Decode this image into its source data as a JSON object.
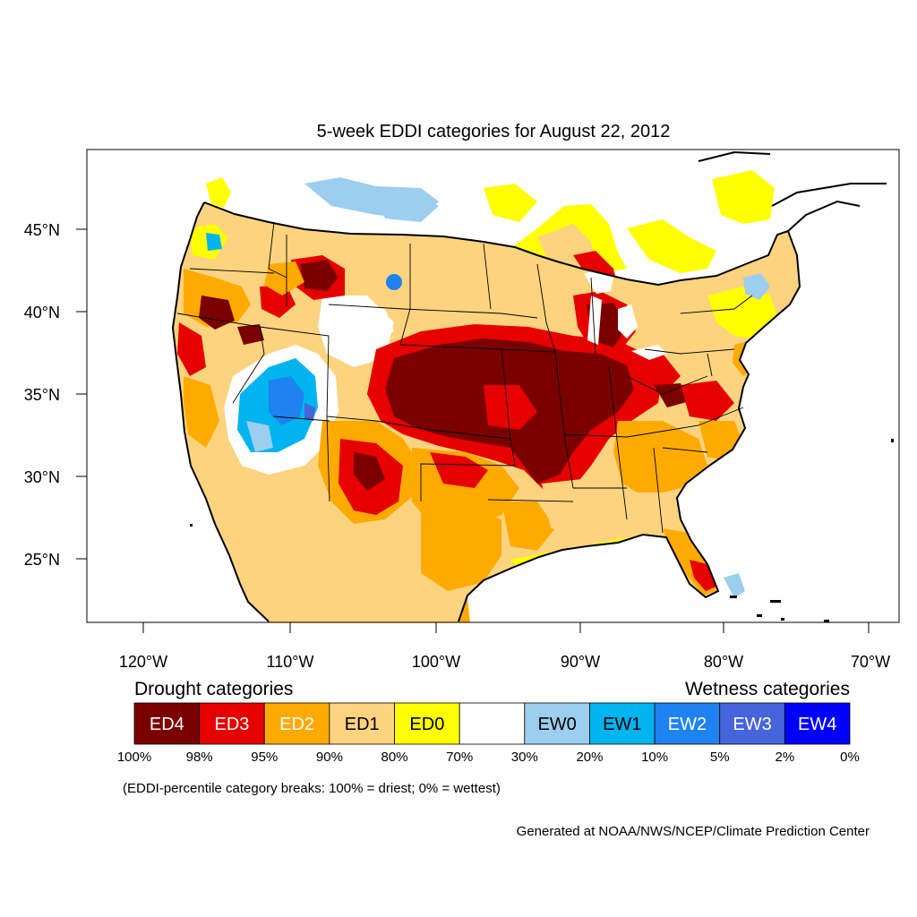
{
  "title": "5-week EDDI categories for August 22, 2012",
  "lat_labels": [
    "45°N",
    "40°N",
    "35°N",
    "30°N",
    "25°N"
  ],
  "lon_labels": [
    "120°W",
    "110°W",
    "100°W",
    "90°W",
    "80°W",
    "70°W"
  ],
  "legend": {
    "drought_heading": "Drought categories",
    "wetness_heading": "Wetness categories",
    "categories": [
      {
        "label": "ED4",
        "color": "#7a0000",
        "text_color": "#ffffff"
      },
      {
        "label": "ED3",
        "color": "#e60000",
        "text_color": "#ffffff"
      },
      {
        "label": "ED2",
        "color": "#ffaa00",
        "text_color": "#ffffff"
      },
      {
        "label": "ED1",
        "color": "#fcd37f",
        "text_color": "#000000"
      },
      {
        "label": "ED0",
        "color": "#ffff00",
        "text_color": "#000000"
      },
      {
        "label": "",
        "color": "#ffffff",
        "text_color": "#000000"
      },
      {
        "label": "EW0",
        "color": "#9ccef0",
        "text_color": "#000000"
      },
      {
        "label": "EW1",
        "color": "#00b4f0",
        "text_color": "#000000"
      },
      {
        "label": "EW2",
        "color": "#1e82f0",
        "text_color": "#ffffff"
      },
      {
        "label": "EW3",
        "color": "#4664dc",
        "text_color": "#ffffff"
      },
      {
        "label": "EW4",
        "color": "#0000ff",
        "text_color": "#ffffff"
      }
    ],
    "breaks": [
      "100%",
      "98%",
      "95%",
      "90%",
      "80%",
      "70%",
      "30%",
      "20%",
      "10%",
      "5%",
      "2%",
      "0%"
    ],
    "note": "(EDDI-percentile category breaks: 100% = driest; 0% = wettest)"
  },
  "credit": "Generated at NOAA/NWS/NCEP/Climate Prediction Center"
}
